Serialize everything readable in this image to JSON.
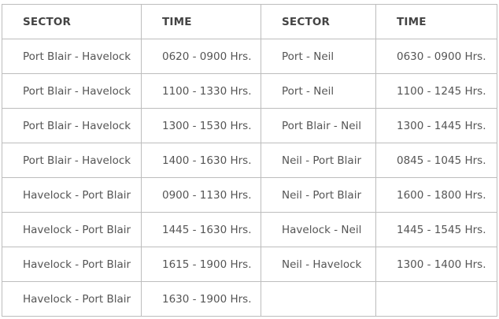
{
  "table": {
    "headers": [
      "SECTOR",
      "TIME",
      "SECTOR",
      "TIME"
    ],
    "rows": [
      [
        "Port Blair - Havelock",
        "0620 - 0900 Hrs.",
        "Port - Neil",
        "0630 - 0900 Hrs."
      ],
      [
        "Port Blair - Havelock",
        "1100 - 1330 Hrs.",
        "Port - Neil",
        "1100 - 1245 Hrs."
      ],
      [
        "Port Blair - Havelock",
        "1300 - 1530 Hrs.",
        "Port Blair - Neil",
        "1300 - 1445 Hrs."
      ],
      [
        "Port Blair - Havelock",
        "1400 - 1630 Hrs.",
        "Neil - Port Blair",
        "0845 - 1045 Hrs."
      ],
      [
        "Havelock - Port Blair",
        "0900 - 1130 Hrs.",
        "Neil - Port Blair",
        "1600 - 1800 Hrs."
      ],
      [
        "Havelock - Port Blair",
        "1445 - 1630 Hrs.",
        "Havelock - Neil",
        "1445 - 1545 Hrs."
      ],
      [
        "Havelock - Port Blair",
        "1615 - 1900 Hrs.",
        "Neil - Havelock",
        "1300 - 1400 Hrs."
      ],
      [
        "Havelock - Port Blair",
        "1630 - 1900 Hrs.",
        "",
        ""
      ]
    ]
  }
}
